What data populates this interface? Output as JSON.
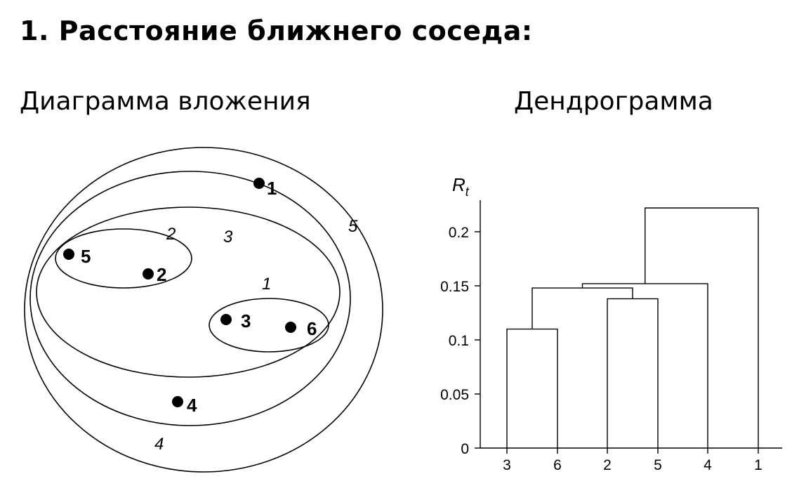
{
  "title": "1. Расстояние ближнего соседа:",
  "left_panel": {
    "heading": "Диаграмма вложения",
    "points": [
      {
        "label": "1"
      },
      {
        "label": "5"
      },
      {
        "label": "2"
      },
      {
        "label": "3"
      },
      {
        "label": "6"
      },
      {
        "label": "4"
      }
    ],
    "cluster_labels": [
      "1",
      "2",
      "3",
      "4",
      "5"
    ]
  },
  "right_panel": {
    "heading": "Дендрограмма"
  },
  "chart_data": {
    "type": "dendrogram",
    "ylabel_main": "R",
    "ylabel_sub": "t",
    "ylim": [
      0,
      0.23
    ],
    "yticks": [
      "0",
      "0.05",
      "0.1",
      "0.15",
      "0.2"
    ],
    "ytick_values": [
      0,
      0.05,
      0.1,
      0.15,
      0.2
    ],
    "leaves": [
      "3",
      "6",
      "2",
      "5",
      "4",
      "1"
    ],
    "merges": [
      {
        "left": "3",
        "right": "6",
        "height": 0.11
      },
      {
        "left": "2",
        "right": "5",
        "height": 0.138
      },
      {
        "left": "{3,6}",
        "right": "{2,5}",
        "height": 0.148
      },
      {
        "left": "{3,6,2,5}",
        "right": "4",
        "height": 0.152
      },
      {
        "left": "{3,6,2,5,4}",
        "right": "1",
        "height": 0.222
      }
    ]
  }
}
